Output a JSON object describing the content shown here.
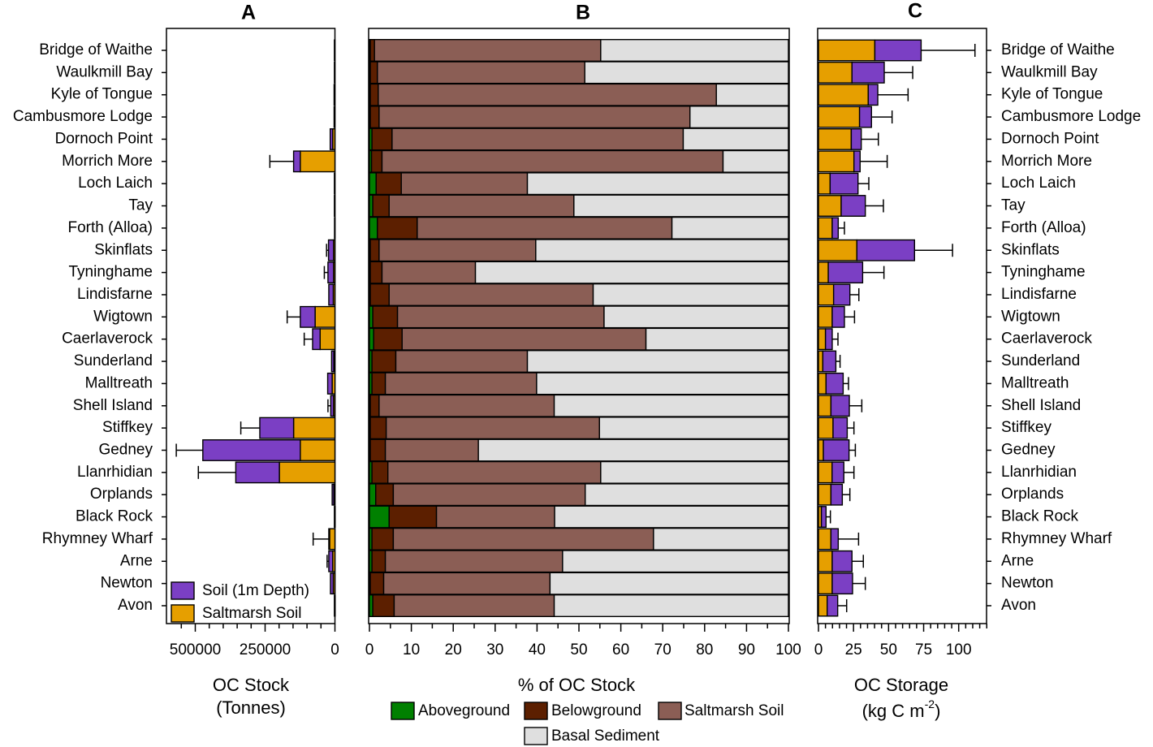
{
  "colors": {
    "saltmarsh_soil_stock": "#E69F00",
    "soil_1m": "#7B3FC4",
    "aboveground": "#008000",
    "belowground": "#5C1F00",
    "saltmarsh_soil_pct": "#8B5E55",
    "basal_sediment": "#DFDFDF"
  },
  "chart_data": [
    {
      "panel": "A",
      "type": "bar",
      "orientation": "horizontal-stacked",
      "title": "A",
      "xlabel": "OC Stock",
      "xlabel2": "(Tonnes)",
      "xlim": [
        500000,
        0
      ],
      "xlim_data": [
        0,
        600000
      ],
      "xticks": [
        "500000",
        "250000",
        "0"
      ],
      "xtick_values": [
        500000,
        250000,
        0
      ],
      "legend": [
        "Soil (1m Depth)",
        "Saltmarsh Soil"
      ],
      "legend_position": "bottom-left",
      "categories": [
        "Bridge of Waithe",
        "Waulkmill Bay",
        "Kyle of Tongue",
        "Cambusmore Lodge",
        "Dornoch Point",
        "Morrich More",
        "Loch Laich",
        "Tay",
        "Forth (Alloa)",
        "Skinflats",
        "Tyninghame",
        "Lindisfarne",
        "Wigtown",
        "Caerlaverock",
        "Sunderland",
        "Malltreath",
        "Shell Island",
        "Stiffkey",
        "Gedney",
        "Llanrhidian",
        "Orplands",
        "Black Rock",
        "Rhymney Wharf",
        "Arne",
        "Newton",
        "Avon"
      ],
      "series": [
        {
          "name": "Saltmarsh Soil",
          "values": [
            2000,
            2000,
            3000,
            3000,
            8000,
            124000,
            2000,
            2000,
            1500,
            5000,
            5000,
            6000,
            71000,
            53000,
            4000,
            10000,
            5000,
            148000,
            124000,
            199000,
            4000,
            1000,
            19000,
            8000,
            6000,
            1000
          ]
        },
        {
          "name": "Soil (1m Depth)",
          "values": [
            0,
            0,
            0,
            0,
            9000,
            24000,
            0,
            0,
            0,
            18000,
            20000,
            16000,
            53000,
            27000,
            8000,
            16000,
            10000,
            121000,
            349000,
            156000,
            6000,
            1000,
            3000,
            14000,
            10000,
            1000
          ]
        }
      ],
      "error_upper": [
        0,
        0,
        0,
        0,
        0,
        233000,
        0,
        0,
        0,
        30000,
        38000,
        0,
        171000,
        110000,
        0,
        0,
        25000,
        337000,
        568000,
        489000,
        0,
        0,
        78000,
        28000,
        0,
        0
      ]
    },
    {
      "panel": "B",
      "type": "bar",
      "orientation": "horizontal-stacked-percent",
      "title": "B",
      "xlabel": "% of OC Stock",
      "xlim": [
        0,
        100
      ],
      "xticks": [
        "0",
        "10",
        "20",
        "30",
        "40",
        "50",
        "60",
        "70",
        "80",
        "90",
        "100"
      ],
      "legend": [
        "Aboveground",
        "Belowground",
        "Saltmarsh Soil",
        "Basal Sediment"
      ],
      "legend_position": "bottom",
      "series": [
        {
          "name": "Aboveground",
          "values": [
            0.2,
            0.2,
            0.2,
            0.2,
            0.6,
            0.5,
            1.6,
            0.8,
            1.9,
            0.2,
            0.2,
            0.2,
            0.8,
            1.0,
            0.6,
            0.6,
            0.2,
            0.2,
            0.2,
            0.6,
            1.5,
            4.7,
            0.6,
            0.6,
            0.2,
            0.8
          ]
        },
        {
          "name": "Belowground",
          "values": [
            1.0,
            1.7,
            1.9,
            2.1,
            4.8,
            2.5,
            6.0,
            3.9,
            9.5,
            2.1,
            2.8,
            4.5,
            5.9,
            6.8,
            5.7,
            3.2,
            2.1,
            3.8,
            3.6,
            3.8,
            4.2,
            11.3,
            5.1,
            3.2,
            3.2,
            5.1
          ]
        },
        {
          "name": "Saltmarsh Soil",
          "values": [
            54.0,
            49.5,
            80.7,
            74.2,
            69.5,
            81.4,
            30.1,
            44.1,
            60.8,
            37.4,
            22.3,
            48.7,
            49.3,
            58.2,
            31.4,
            36.1,
            41.8,
            50.9,
            22.2,
            50.8,
            45.8,
            28.2,
            62.1,
            42.3,
            39.7,
            38.2
          ]
        },
        {
          "name": "Basal Sediment",
          "values": [
            44.8,
            48.6,
            17.2,
            23.5,
            25.1,
            15.6,
            62.3,
            51.2,
            27.8,
            60.3,
            74.7,
            46.6,
            44.0,
            34.0,
            62.3,
            60.1,
            55.9,
            45.1,
            74.0,
            44.8,
            48.5,
            55.8,
            32.2,
            53.9,
            56.9,
            55.9
          ]
        }
      ]
    },
    {
      "panel": "C",
      "type": "bar",
      "orientation": "horizontal-stacked",
      "title": "C",
      "xlabel": "OC Storage",
      "xlabel2_pre": "(kg C m",
      "xlabel2_sup": "-2",
      "xlabel2_post": ")",
      "xlim": [
        0,
        120
      ],
      "xticks": [
        "0",
        "25",
        "50",
        "75",
        "100"
      ],
      "xtick_values": [
        0,
        25,
        50,
        75,
        100
      ],
      "series": [
        {
          "name": "Saltmarsh Soil",
          "values": [
            40.2,
            23.9,
            35.5,
            29.3,
            23.4,
            25.3,
            8.3,
            16.2,
            9.8,
            27.4,
            7.0,
            10.8,
            9.8,
            5.0,
            3.1,
            5.4,
            8.9,
            10.4,
            3.5,
            9.7,
            8.9,
            2.1,
            8.9,
            9.8,
            9.8,
            6.2
          ]
        },
        {
          "name": "Soil (1m Depth)",
          "values": [
            33.0,
            23.0,
            6.8,
            8.5,
            7.1,
            4.4,
            19.9,
            17.2,
            4.3,
            41.1,
            24.5,
            11.6,
            8.7,
            4.8,
            9.3,
            12.2,
            13.1,
            10.1,
            18.3,
            8.4,
            8.1,
            3.3,
            5.2,
            14.1,
            14.5,
            7.5
          ]
        }
      ],
      "error_upper": [
        111.6,
        67.2,
        63.9,
        52.5,
        42.7,
        49.0,
        35.9,
        46.3,
        18.5,
        95.6,
        46.7,
        28.8,
        25.7,
        13.9,
        15.4,
        21.4,
        30.9,
        25.3,
        26.3,
        25.3,
        22.4,
        8.5,
        28.6,
        32.0,
        33.4,
        20.1
      ]
    }
  ]
}
